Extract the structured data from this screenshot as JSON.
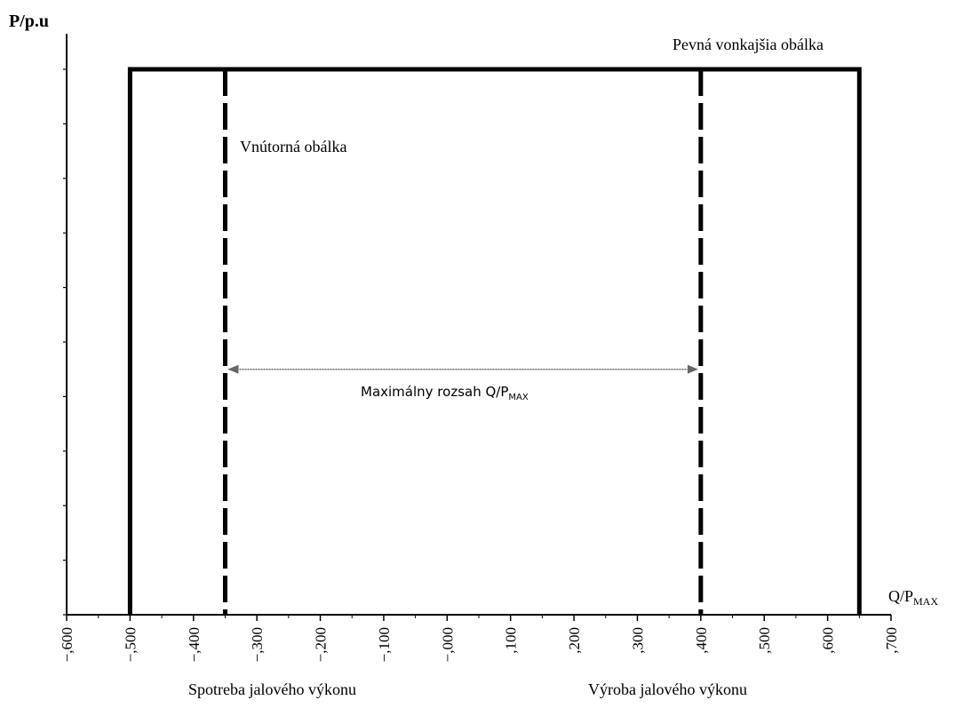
{
  "chart_data": {
    "type": "line",
    "ylabel": "P/p.u",
    "xlabel": "Q/P",
    "xlabel_sub": "MAX",
    "x_ticks": [
      -0.6,
      -0.5,
      -0.4,
      -0.3,
      -0.2,
      -0.1,
      0.0,
      0.1,
      0.2,
      0.3,
      0.4,
      0.5,
      0.6,
      0.7
    ],
    "x_tick_labels": [
      "−,600",
      "−,500",
      "−,400",
      "−,300",
      "−,200",
      "−,100",
      "−,000",
      ",100",
      ",200",
      ",300",
      ",400",
      ",500",
      ",600",
      ",700"
    ],
    "xlim": [
      -0.6,
      0.7
    ],
    "ylim": [
      0,
      1
    ],
    "y_tick_count": 11,
    "grid": false,
    "outer_envelope": {
      "label": "Pevná vonkajšia obálka",
      "q_min": -0.5,
      "q_max": 0.65,
      "p_max": 1.0,
      "line_style": "solid"
    },
    "inner_envelope": {
      "label": "Vnútorná obálka",
      "q_min": -0.35,
      "q_max": 0.4,
      "line_style": "dashed"
    },
    "range_arrow": {
      "label": "Maximálny rozsah Q/P",
      "label_sub": "MAX",
      "from": -0.35,
      "to": 0.4,
      "p_level": 0.45
    },
    "bottom_labels": {
      "consumption": "Spotreba jalového výkonu",
      "production": "Výroba jalového výkonu"
    }
  }
}
